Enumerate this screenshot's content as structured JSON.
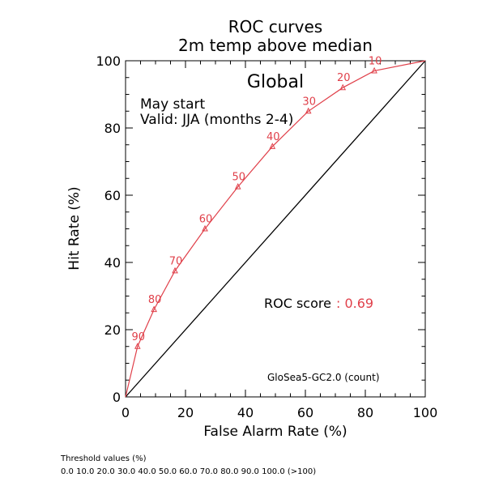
{
  "chart_data": {
    "type": "line",
    "title": "ROC curves",
    "subtitle": "2m temp above median",
    "region": "Global",
    "annotation_line1": "May start",
    "annotation_line2": "Valid: JJA (months 2-4)",
    "xlabel": "False Alarm Rate (%)",
    "ylabel": "Hit Rate (%)",
    "xlim": [
      0,
      100
    ],
    "ylim": [
      0,
      100
    ],
    "x_ticks": [
      "0",
      "20",
      "40",
      "60",
      "80",
      "100"
    ],
    "y_ticks": [
      "0",
      "20",
      "40",
      "60",
      "80",
      "100"
    ],
    "score_label": "ROC score",
    "score_value": ": 0.69",
    "model_label": "GloSea5-GC2.0 (count)",
    "series": [
      {
        "color": "#e0404a",
        "x": [
          0,
          4,
          9.5,
          16.5,
          26.5,
          37.5,
          49,
          61,
          72.5,
          83,
          100
        ],
        "y": [
          0,
          15,
          26,
          37.5,
          50,
          62.5,
          74.5,
          85,
          92,
          97,
          100
        ],
        "labels": [
          "",
          "90",
          "80",
          "70",
          "60",
          "50",
          "40",
          "30",
          "20",
          "10",
          ""
        ]
      },
      {
        "color": "#000000",
        "x": [
          0,
          100
        ],
        "y": [
          0,
          100
        ]
      }
    ]
  },
  "footer": {
    "threshold_title": "Threshold values (%)",
    "threshold_values": "0.0 10.0 20.0 30.0 40.0 50.0 60.0 70.0 80.0 90.0 100.0 (>100)"
  }
}
